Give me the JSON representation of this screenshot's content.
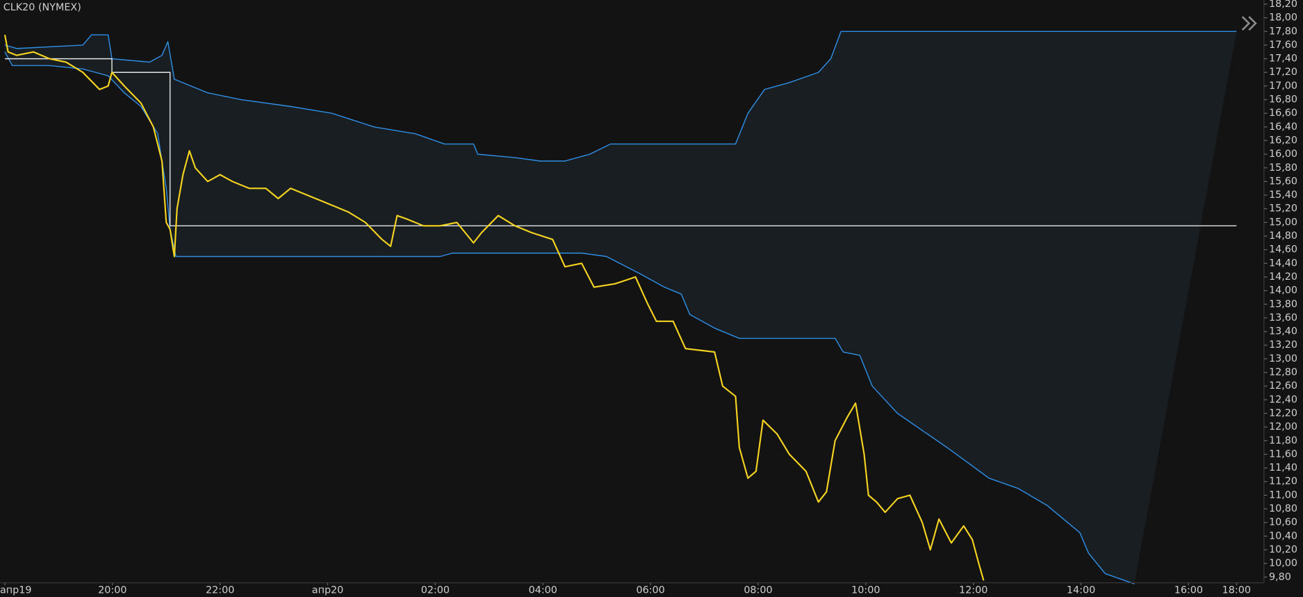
{
  "chart_data": {
    "type": "line",
    "title": "CLK20 (NYMEX)",
    "xlim": [
      17.91,
      41.4
    ],
    "ylim": [
      9.74,
      18.26
    ],
    "xticks": [
      {
        "value": 18,
        "label": "апр19"
      },
      {
        "value": 20,
        "label": "20:00"
      },
      {
        "value": 22,
        "label": "22:00"
      },
      {
        "value": 24,
        "label": "апр20"
      },
      {
        "value": 26,
        "label": "02:00"
      },
      {
        "value": 28,
        "label": "04:00"
      },
      {
        "value": 30,
        "label": "06:00"
      },
      {
        "value": 32,
        "label": "08:00"
      },
      {
        "value": 34,
        "label": "10:00"
      },
      {
        "value": 36,
        "label": "12:00"
      },
      {
        "value": 38,
        "label": "14:00"
      },
      {
        "value": 40,
        "label": "16:00"
      },
      {
        "value": 40.89,
        "label": "18:00"
      }
    ],
    "yticks": [
      {
        "value": 9.8,
        "label": "9,80"
      },
      {
        "value": 10.0,
        "label": "10,00"
      },
      {
        "value": 10.2,
        "label": "10,20"
      },
      {
        "value": 10.4,
        "label": "10,40"
      },
      {
        "value": 10.6,
        "label": "10,60"
      },
      {
        "value": 10.8,
        "label": "10,80"
      },
      {
        "value": 11.0,
        "label": "11,00"
      },
      {
        "value": 11.2,
        "label": "11,20"
      },
      {
        "value": 11.4,
        "label": "11,40"
      },
      {
        "value": 11.6,
        "label": "11,60"
      },
      {
        "value": 11.8,
        "label": "11,80"
      },
      {
        "value": 12.0,
        "label": "12,00"
      },
      {
        "value": 12.2,
        "label": "12,20"
      },
      {
        "value": 12.4,
        "label": "12,40"
      },
      {
        "value": 12.6,
        "label": "12,60"
      },
      {
        "value": 12.8,
        "label": "12,80"
      },
      {
        "value": 13.0,
        "label": "13,00"
      },
      {
        "value": 13.2,
        "label": "13,20"
      },
      {
        "value": 13.4,
        "label": "13,40"
      },
      {
        "value": 13.6,
        "label": "13,60"
      },
      {
        "value": 13.8,
        "label": "13,80"
      },
      {
        "value": 14.0,
        "label": "14,00"
      },
      {
        "value": 14.2,
        "label": "14,20"
      },
      {
        "value": 14.4,
        "label": "14,40"
      },
      {
        "value": 14.6,
        "label": "14,60"
      },
      {
        "value": 14.8,
        "label": "14,80"
      },
      {
        "value": 15.0,
        "label": "15,00"
      },
      {
        "value": 15.2,
        "label": "15,20"
      },
      {
        "value": 15.4,
        "label": "15,40"
      },
      {
        "value": 15.6,
        "label": "15,60"
      },
      {
        "value": 15.8,
        "label": "15,80"
      },
      {
        "value": 16.0,
        "label": "16,00"
      },
      {
        "value": 16.2,
        "label": "16,20"
      },
      {
        "value": 16.4,
        "label": "16,40"
      },
      {
        "value": 16.6,
        "label": "16,60"
      },
      {
        "value": 16.8,
        "label": "16,80"
      },
      {
        "value": 17.0,
        "label": "17,00"
      },
      {
        "value": 17.2,
        "label": "17,20"
      },
      {
        "value": 17.4,
        "label": "17,40"
      },
      {
        "value": 17.6,
        "label": "17,60"
      },
      {
        "value": 17.8,
        "label": "17,80"
      },
      {
        "value": 18.0,
        "label": "18,00"
      },
      {
        "value": 18.2,
        "label": "18,20"
      }
    ],
    "series": [
      {
        "color": "#2f8ee5",
        "x": [
          18.0,
          18.22,
          19.45,
          19.61,
          19.92,
          19.99,
          20.69,
          20.92,
          21.03,
          21.15,
          21.77,
          22.39,
          23.31,
          24.08,
          24.86,
          25.63,
          26.17,
          26.71,
          26.79,
          27.48,
          27.95,
          28.41,
          28.87,
          29.26,
          30.26,
          31.58,
          31.81,
          32.12,
          32.58,
          33.12,
          33.35,
          33.54,
          40.89
        ],
        "values": [
          17.6,
          17.55,
          17.6,
          17.75,
          17.75,
          17.4,
          17.35,
          17.45,
          17.65,
          17.1,
          16.9,
          16.8,
          16.7,
          16.6,
          16.4,
          16.3,
          16.15,
          16.15,
          16.0,
          15.95,
          15.9,
          15.9,
          16.0,
          16.15,
          16.15,
          16.15,
          16.6,
          16.95,
          17.05,
          17.2,
          17.4,
          17.8,
          17.8
        ]
      },
      {
        "color": "#2f8ee5",
        "x": [
          18.0,
          18.14,
          18.83,
          19.45,
          19.92,
          20.22,
          20.53,
          20.84,
          21.0,
          21.07,
          21.18,
          22.54,
          26.09,
          26.32,
          27.95,
          28.72,
          29.18,
          29.8,
          30.26,
          30.57,
          30.73,
          31.19,
          31.65,
          33.43,
          33.58,
          33.89,
          34.12,
          34.59,
          35.05,
          35.51,
          36.29,
          36.83,
          37.37,
          37.98,
          38.14,
          38.45,
          38.99
        ],
        "values": [
          17.5,
          17.3,
          17.3,
          17.25,
          17.15,
          16.9,
          16.7,
          16.3,
          15.5,
          14.9,
          14.5,
          14.5,
          14.5,
          14.55,
          14.55,
          14.55,
          14.5,
          14.25,
          14.05,
          13.95,
          13.65,
          13.45,
          13.3,
          13.3,
          13.1,
          13.05,
          12.6,
          12.2,
          11.95,
          11.7,
          11.25,
          11.1,
          10.85,
          10.45,
          10.15,
          9.85,
          9.7
        ]
      },
      {
        "color": "#e6e6e6",
        "x": [
          18.0,
          19.99,
          19.99,
          21.07,
          21.07,
          40.89
        ],
        "values": [
          17.4,
          17.4,
          17.2,
          17.2,
          14.95,
          14.95
        ]
      },
      {
        "color": "#f5d320",
        "x": [
          18.0,
          18.06,
          18.22,
          18.53,
          18.83,
          19.14,
          19.45,
          19.76,
          19.92,
          19.99,
          20.22,
          20.53,
          20.76,
          20.92,
          21.0,
          21.07,
          21.15,
          21.2,
          21.31,
          21.43,
          21.54,
          21.77,
          22.0,
          22.23,
          22.54,
          22.85,
          23.08,
          23.31,
          23.62,
          23.93,
          24.39,
          24.7,
          25.01,
          25.17,
          25.29,
          25.47,
          25.78,
          26.09,
          26.4,
          26.71,
          26.86,
          27.17,
          27.48,
          27.79,
          28.18,
          28.41,
          28.72,
          28.95,
          29.34,
          29.72,
          29.95,
          30.11,
          30.42,
          30.65,
          31.19,
          31.34,
          31.58,
          31.65,
          31.81,
          31.96,
          32.09,
          32.35,
          32.58,
          32.89,
          33.12,
          33.27,
          33.43,
          33.66,
          33.81,
          33.97,
          34.05,
          34.2,
          34.36,
          34.59,
          34.82,
          35.05,
          35.2,
          35.36,
          35.59,
          35.82,
          35.98,
          36.1,
          36.19
        ],
        "values": [
          17.75,
          17.5,
          17.45,
          17.5,
          17.4,
          17.35,
          17.2,
          16.95,
          17.0,
          17.2,
          17.0,
          16.75,
          16.4,
          15.9,
          15.0,
          14.9,
          14.5,
          15.2,
          15.7,
          16.05,
          15.8,
          15.6,
          15.7,
          15.6,
          15.5,
          15.5,
          15.35,
          15.5,
          15.4,
          15.3,
          15.15,
          15.0,
          14.75,
          14.65,
          15.1,
          15.05,
          14.95,
          14.95,
          15.0,
          14.7,
          14.85,
          15.1,
          14.95,
          14.85,
          14.75,
          14.35,
          14.4,
          14.05,
          14.1,
          14.2,
          13.8,
          13.55,
          13.55,
          13.15,
          13.1,
          12.6,
          12.45,
          11.7,
          11.25,
          11.35,
          12.1,
          11.9,
          11.6,
          11.35,
          10.9,
          11.05,
          11.8,
          12.15,
          12.35,
          11.6,
          11.0,
          10.9,
          10.75,
          10.95,
          11.0,
          10.6,
          10.2,
          10.65,
          10.3,
          10.55,
          10.35,
          10.0,
          9.75
        ]
      }
    ]
  }
}
